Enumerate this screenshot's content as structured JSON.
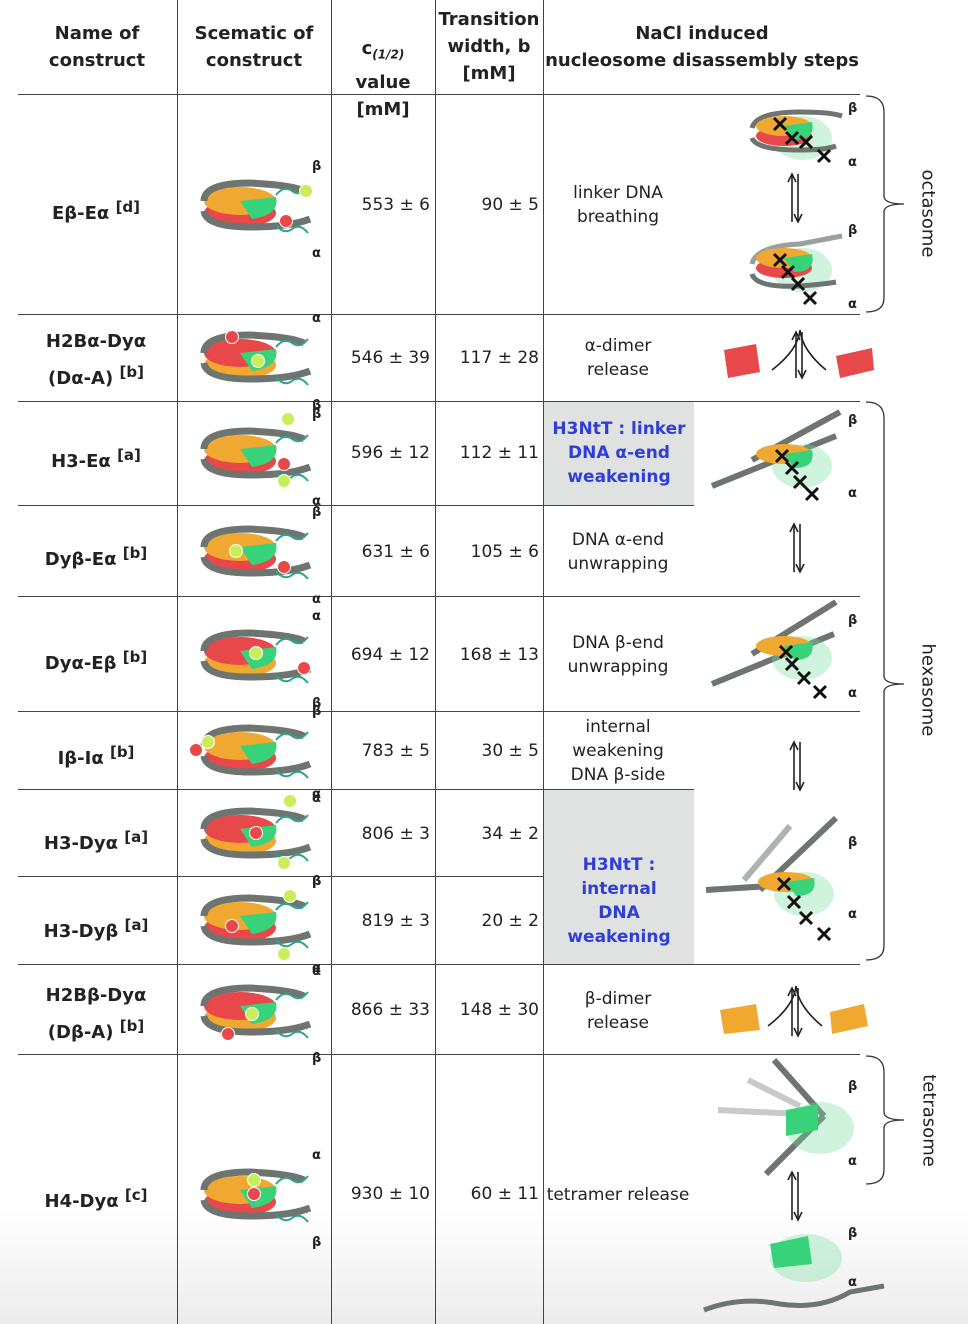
{
  "headers": {
    "name": "Name of\nconstruct",
    "schematic": "Scematic of\nconstruct",
    "c_pre": "c",
    "c_sub": "(1/2)",
    "c_post": " value\n[mM]",
    "width": "Transition\nwidth, b\n[mM]",
    "steps": "NaCl induced\nnucleosome disassembly steps"
  },
  "rows": [
    {
      "name": "Eβ-Eα",
      "ref": "[d]",
      "c": "553 ± 6",
      "b": "90 ± 5",
      "step": "linker DNA\nbreathing",
      "top_label": "β",
      "bottom_label": "α"
    },
    {
      "name": "H2Bα-Dyα",
      "name2": "(Dα-A)",
      "ref": "[b]",
      "c": "546 ± 39",
      "b": "117 ± 28",
      "step": "α-dimer\nrelease",
      "top_label": "α",
      "bottom_label": "β"
    },
    {
      "name": "H3-Eα",
      "ref": "[a]",
      "c": "596 ± 12",
      "b": "112 ± 11",
      "step": "H3NtT : linker\nDNA α-end\nweakening",
      "top_label": "β",
      "bottom_label": "α"
    },
    {
      "name": "Dyβ-Eα",
      "ref": "[b]",
      "c": "631 ± 6",
      "b": "105 ± 6",
      "step": "DNA α-end\nunwrapping",
      "top_label": "β",
      "bottom_label": "α"
    },
    {
      "name": "Dyα-Eβ",
      "ref": "[b]",
      "c": "694 ± 12",
      "b": "168 ± 13",
      "step": "DNA β-end\nunwrapping",
      "top_label": "α",
      "bottom_label": "β"
    },
    {
      "name": "Iβ-Iα",
      "ref": "[b]",
      "c": "783 ± 5",
      "b": "30 ± 5",
      "step": "internal\nweakening\nDNA β-side",
      "top_label": "β",
      "bottom_label": "α"
    },
    {
      "name": "H3-Dyα",
      "ref": "[a]",
      "c": "806 ± 3",
      "b": "34 ± 2",
      "step": "",
      "top_label": "α",
      "bottom_label": "β"
    },
    {
      "name": "H3-Dyβ",
      "ref": "[a]",
      "c": "819 ± 3",
      "b": "20 ± 2",
      "step": "",
      "top_label": "β",
      "bottom_label": "α"
    },
    {
      "name": "H2Bβ-Dyα",
      "name2": "(Dβ-A)",
      "ref": "[b]",
      "c": "866 ± 33",
      "b": "148 ± 30",
      "step": "β-dimer\nrelease",
      "top_label": "α",
      "bottom_label": "β"
    },
    {
      "name": "H4-Dyα",
      "ref": "[c]",
      "c": "930 ± 10",
      "b": "60 ± 11",
      "step": "tetramer release",
      "top_label": "α",
      "bottom_label": "β"
    }
  ],
  "merged_step": "H3NtT : internal\nDNA weakening",
  "states": {
    "octasome": "octasome",
    "hexasome": "hexasome",
    "tetrasome": "tetrasome"
  },
  "greek": {
    "alpha": "α",
    "beta": "β"
  },
  "colors": {
    "orange": "#f0a830",
    "red": "#e8484a",
    "green": "#38d27a",
    "dna": "#6e7470",
    "blue_text": "#2f3fd6",
    "shade": "#e0e2e1"
  }
}
